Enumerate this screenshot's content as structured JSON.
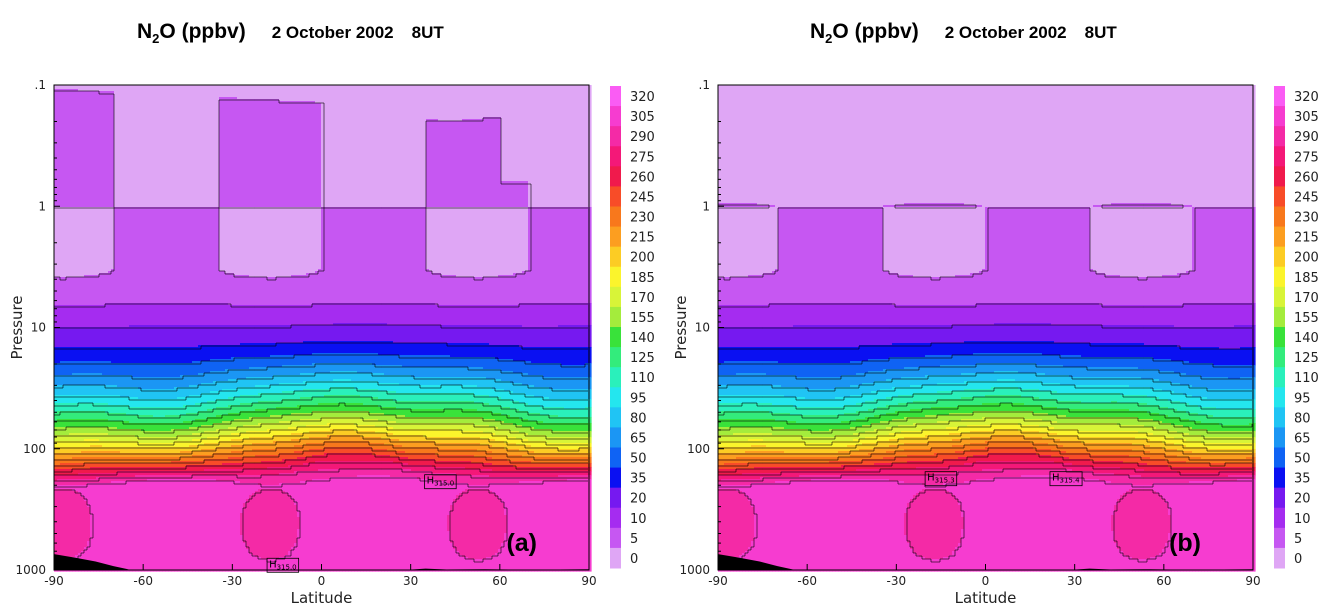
{
  "chart_data": [
    {
      "type": "heatmap",
      "panel_label": "(a)",
      "title": {
        "species": "N",
        "subscript": "2",
        "suffix": "O (ppbv)",
        "date": "2 October 2002",
        "time": "8UT"
      },
      "xlabel": "Latitude",
      "ylabel": "Pressure",
      "xlim": [
        -90,
        90
      ],
      "ylim": [
        1000,
        0.1
      ],
      "y_scale": "log",
      "x_ticks": [
        "-90",
        "-60",
        "-30",
        "0",
        "30",
        "60",
        "90"
      ],
      "y_ticks": [
        ".1",
        "1",
        "10",
        "100",
        "1000"
      ],
      "colorbar_ticks": [
        "320",
        "305",
        "290",
        "275",
        "260",
        "245",
        "230",
        "215",
        "200",
        "185",
        "170",
        "155",
        "140",
        "125",
        "110",
        "95",
        "80",
        "65",
        "50",
        "35",
        "20",
        "10",
        "5",
        "0"
      ],
      "contour_levels_ppbv": [
        5,
        10,
        20,
        35,
        50,
        65,
        80,
        95,
        110,
        125,
        140,
        155,
        170,
        185,
        200,
        215,
        230,
        245,
        260,
        275,
        290,
        305
      ],
      "maxima_labels": [
        {
          "prefix": "H",
          "value": "315.0",
          "lat": 40,
          "p": 180
        },
        {
          "prefix": "H",
          "value": "315.0",
          "lat": -13,
          "p": 880
        }
      ],
      "grid": false,
      "legend": "colorbar-right"
    },
    {
      "type": "heatmap",
      "panel_label": "(b)",
      "title": {
        "species": "N",
        "subscript": "2",
        "suffix": "O (ppbv)",
        "date": "2 October 2002",
        "time": "8UT"
      },
      "xlabel": "Latitude",
      "ylabel": "Pressure",
      "xlim": [
        -90,
        90
      ],
      "ylim": [
        1000,
        0.1
      ],
      "y_scale": "log",
      "x_ticks": [
        "-90",
        "-60",
        "-30",
        "0",
        "30",
        "60",
        "90"
      ],
      "y_ticks": [
        ".1",
        "1",
        "10",
        "100",
        "1000"
      ],
      "colorbar_ticks": [
        "320",
        "305",
        "290",
        "275",
        "260",
        "245",
        "230",
        "215",
        "200",
        "185",
        "170",
        "155",
        "140",
        "125",
        "110",
        "95",
        "80",
        "65",
        "50",
        "35",
        "20",
        "10",
        "5",
        "0"
      ],
      "contour_levels_ppbv": [
        5,
        10,
        20,
        35,
        50,
        65,
        80,
        95,
        110,
        125,
        140,
        155,
        170,
        185,
        200,
        215,
        230,
        245,
        260,
        275,
        290,
        305
      ],
      "maxima_labels": [
        {
          "prefix": "H",
          "value": "315.3",
          "lat": -15,
          "p": 170
        },
        {
          "prefix": "H",
          "value": "315.4",
          "lat": 27,
          "p": 170
        }
      ],
      "grid": false,
      "legend": "colorbar-right"
    }
  ],
  "colors": {
    "bands": [
      "#dfa6f5",
      "#c657f2",
      "#a52cf0",
      "#7619f0",
      "#0a10f2",
      "#0f63f4",
      "#1b96f4",
      "#20c4f4",
      "#24e6ee",
      "#2af0bb",
      "#33ec7c",
      "#39e23a",
      "#a4ec3c",
      "#d8f438",
      "#fbf42c",
      "#fccc24",
      "#fc9e20",
      "#f8781c",
      "#f84c28",
      "#f01a4c",
      "#f41878",
      "#f42aa6",
      "#f63cd0",
      "#fa5cf4"
    ],
    "outline": "#000000",
    "terrain": "#000000"
  }
}
